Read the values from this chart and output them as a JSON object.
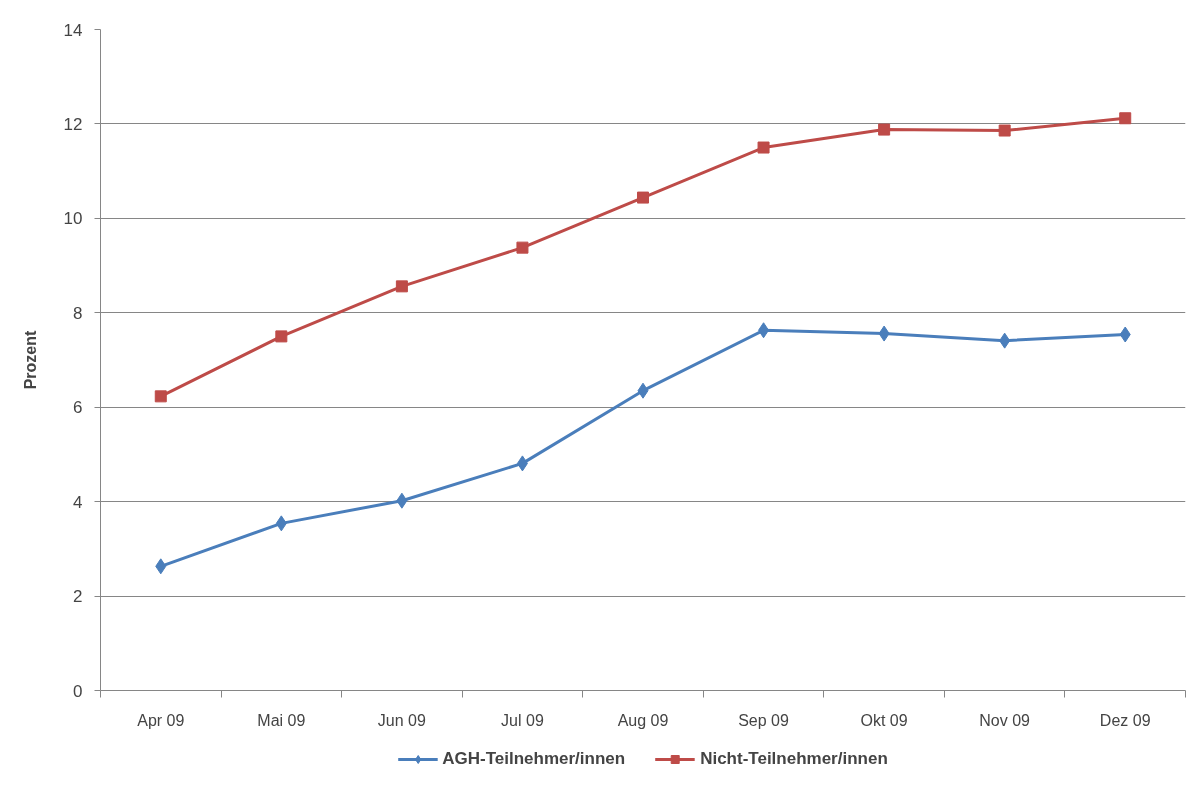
{
  "chart_data": {
    "type": "line",
    "ylabel": "Prozent",
    "categories": [
      "Apr 09",
      "Mai 09",
      "Jun 09",
      "Jul 09",
      "Aug 09",
      "Sep 09",
      "Okt 09",
      "Nov 09",
      "Dez 09"
    ],
    "series": [
      {
        "name": "AGH-Teilnehmer/innen",
        "color": "#4a7ebb",
        "marker": "diamond",
        "values": [
          2.63,
          3.54,
          4.02,
          4.81,
          6.35,
          7.63,
          7.56,
          7.41,
          7.54
        ]
      },
      {
        "name": "Nicht-Teilnehmer/innen",
        "color": "#be4b48",
        "marker": "square",
        "values": [
          6.23,
          7.5,
          8.56,
          9.38,
          10.44,
          11.5,
          11.88,
          11.86,
          12.12
        ]
      }
    ],
    "ylim": [
      0,
      14
    ],
    "yticks": [
      0,
      2,
      4,
      6,
      8,
      10,
      12,
      14
    ],
    "grid": "y",
    "legend": "bottom"
  }
}
